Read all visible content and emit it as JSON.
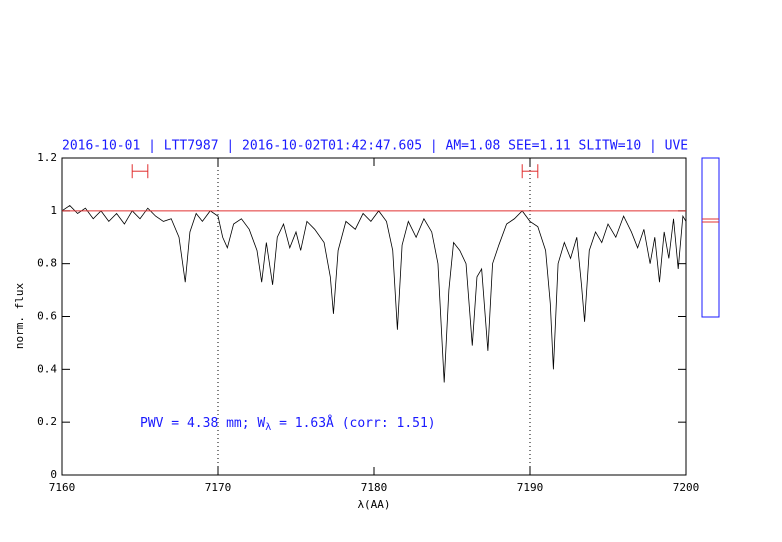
{
  "chart_data": {
    "type": "line",
    "title": "2016-10-01 | LTT7987 | 2016-10-02T01:42:47.605 | AM=1.08 SEE=1.11 SLITW=10 | UVE",
    "x_label": "λ(AA)",
    "y_label": "norm. flux",
    "annotation": [
      "PWV = 4.38 mm; W",
      "λ",
      " = 1.63Å (corr: 1.51)"
    ],
    "xlim": [
      7160,
      7200
    ],
    "xticks": [
      7160,
      7170,
      7180,
      7190,
      7200
    ],
    "ylim": [
      0,
      1.2
    ],
    "yticks": [
      0,
      0.2,
      0.4,
      0.6,
      0.8,
      1,
      1.2
    ],
    "ref_line": 1,
    "ref_color": "#e03030",
    "vlines": [
      7170,
      7190
    ],
    "markers": [
      {
        "x": [
          7164.5,
          7165.5
        ],
        "y": 1.15
      },
      {
        "x": [
          7189.5,
          7190.5
        ],
        "y": 1.15
      }
    ],
    "series": [
      {
        "color": "#000000",
        "x": [
          7160.0,
          7160.5,
          7161.0,
          7161.5,
          7162.0,
          7162.5,
          7163.0,
          7163.5,
          7164.0,
          7164.5,
          7165.0,
          7165.5,
          7166.0,
          7166.5,
          7167.0,
          7167.5,
          7167.9,
          7168.2,
          7168.6,
          7169.0,
          7169.5,
          7170.0,
          7170.3,
          7170.6,
          7171.0,
          7171.5,
          7172.0,
          7172.5,
          7172.8,
          7173.1,
          7173.5,
          7173.8,
          7174.2,
          7174.6,
          7175.0,
          7175.3,
          7175.7,
          7176.2,
          7176.8,
          7177.2,
          7177.4,
          7177.7,
          7178.2,
          7178.8,
          7179.3,
          7179.8,
          7180.3,
          7180.8,
          7181.2,
          7181.5,
          7181.8,
          7182.2,
          7182.7,
          7183.2,
          7183.7,
          7184.1,
          7184.5,
          7184.8,
          7185.1,
          7185.5,
          7185.9,
          7186.3,
          7186.6,
          7186.9,
          7187.3,
          7187.6,
          7188.0,
          7188.5,
          7189.0,
          7189.5,
          7190.0,
          7190.5,
          7191.0,
          7191.3,
          7191.5,
          7191.8,
          7192.2,
          7192.6,
          7193.0,
          7193.3,
          7193.5,
          7193.8,
          7194.2,
          7194.6,
          7195.0,
          7195.5,
          7196.0,
          7196.5,
          7196.9,
          7197.3,
          7197.7,
          7198.0,
          7198.3,
          7198.6,
          7198.9,
          7199.2,
          7199.5,
          7199.8,
          7200.0
        ],
        "values": [
          1.0,
          1.02,
          0.99,
          1.01,
          0.97,
          1.0,
          0.96,
          0.99,
          0.95,
          1.0,
          0.97,
          1.01,
          0.98,
          0.96,
          0.97,
          0.9,
          0.73,
          0.92,
          0.99,
          0.96,
          1.0,
          0.98,
          0.9,
          0.86,
          0.95,
          0.97,
          0.93,
          0.85,
          0.73,
          0.88,
          0.72,
          0.9,
          0.95,
          0.86,
          0.92,
          0.85,
          0.96,
          0.93,
          0.88,
          0.75,
          0.61,
          0.85,
          0.96,
          0.93,
          0.99,
          0.96,
          1.0,
          0.96,
          0.85,
          0.55,
          0.87,
          0.96,
          0.9,
          0.97,
          0.92,
          0.8,
          0.35,
          0.7,
          0.88,
          0.85,
          0.8,
          0.49,
          0.75,
          0.78,
          0.47,
          0.8,
          0.87,
          0.95,
          0.97,
          1.0,
          0.96,
          0.94,
          0.85,
          0.65,
          0.4,
          0.8,
          0.88,
          0.82,
          0.9,
          0.72,
          0.58,
          0.85,
          0.92,
          0.88,
          0.95,
          0.9,
          0.98,
          0.92,
          0.86,
          0.93,
          0.8,
          0.9,
          0.73,
          0.92,
          0.82,
          0.97,
          0.78,
          0.98,
          0.96
        ]
      }
    ]
  }
}
